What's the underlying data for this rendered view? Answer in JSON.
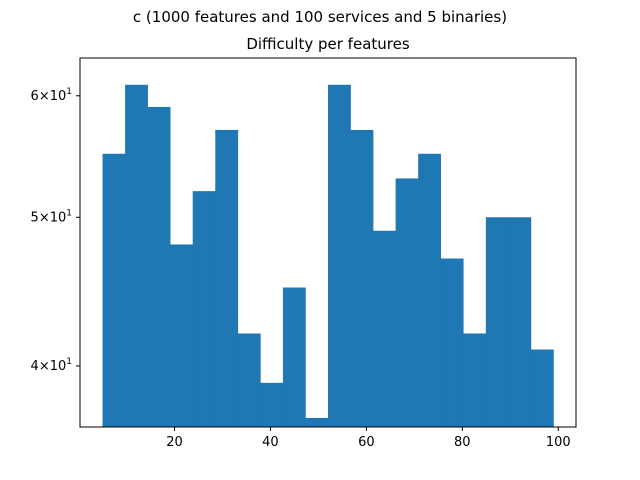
{
  "figure": {
    "suptitle": "c (1000 features and 100 services and 5 binaries)"
  },
  "chart_data": {
    "type": "bar",
    "title": "Difficulty per features",
    "xlabel": "",
    "ylabel": "",
    "yscale": "log",
    "xlim": [
      0.3,
      103.7
    ],
    "ylim": [
      36.5,
      63.5
    ],
    "x_ticks": [
      20,
      40,
      60,
      80,
      100
    ],
    "y_ticks": [
      {
        "value": 40,
        "mantissa": "4",
        "base": "10",
        "exp": "1"
      },
      {
        "value": 50,
        "mantissa": "5",
        "base": "10",
        "exp": "1"
      },
      {
        "value": 60,
        "mantissa": "6",
        "base": "10",
        "exp": "1"
      }
    ],
    "bin_edges": [
      5,
      9.7,
      14.4,
      19.1,
      23.8,
      28.5,
      33.2,
      37.9,
      42.6,
      47.3,
      52,
      56.7,
      61.4,
      66.1,
      70.8,
      75.5,
      80.2,
      84.9,
      89.6,
      94.3,
      99
    ],
    "values": [
      55,
      61,
      59,
      48,
      52,
      57,
      42,
      39,
      45,
      37,
      61,
      57,
      49,
      53,
      55,
      47,
      42,
      50,
      50,
      41
    ],
    "color": "#1f77b4",
    "grid": false,
    "legend": false
  }
}
